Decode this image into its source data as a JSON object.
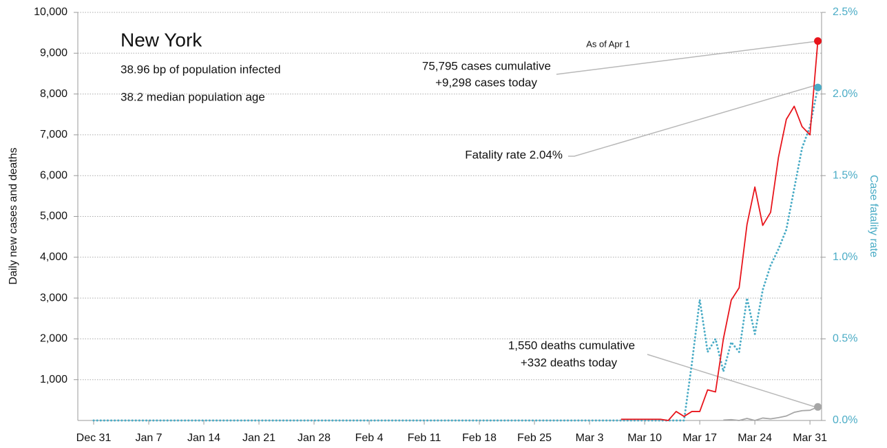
{
  "chart_data": {
    "type": "line",
    "title": "New York",
    "subtitle": [
      "38.96 bp of population infected",
      "38.2 median population age"
    ],
    "y_label": "Daily new cases and deaths",
    "y2_label": "Case fatality rate",
    "annotations": [
      "As of Apr 1",
      "75,795 cases cumulative",
      "+9,298 cases today",
      "Fatality rate 2.04%",
      "1,550 deaths cumulative",
      "+332 deaths today"
    ],
    "categories": [
      "Dec 31",
      null,
      null,
      null,
      null,
      null,
      null,
      "Jan 7",
      null,
      null,
      null,
      null,
      null,
      null,
      "Jan 14",
      null,
      null,
      null,
      null,
      null,
      null,
      "Jan 21",
      null,
      null,
      null,
      null,
      null,
      null,
      "Jan 28",
      null,
      null,
      null,
      null,
      null,
      null,
      "Feb 4",
      null,
      null,
      null,
      null,
      null,
      null,
      "Feb 11",
      null,
      null,
      null,
      null,
      null,
      null,
      "Feb 18",
      null,
      null,
      null,
      null,
      null,
      null,
      "Feb 25",
      null,
      null,
      null,
      null,
      null,
      null,
      "Mar 3",
      null,
      null,
      null,
      null,
      null,
      null,
      "Mar 10",
      null,
      null,
      null,
      null,
      null,
      null,
      "Mar 17",
      null,
      null,
      null,
      null,
      null,
      null,
      "Mar 24",
      null,
      null,
      null,
      null,
      null,
      null,
      "Mar 31",
      null
    ],
    "series": [
      {
        "color": "#4bacc6",
        "axis": "y2",
        "style": "dotted",
        "values": [
          0,
          0,
          0,
          0,
          0,
          0,
          0,
          0,
          0,
          0,
          0,
          0,
          0,
          0,
          0,
          0,
          0,
          0,
          0,
          0,
          0,
          0,
          0,
          0,
          0,
          0,
          0,
          0,
          0,
          0,
          0,
          0,
          0,
          0,
          0,
          0,
          0,
          0,
          0,
          0,
          0,
          0,
          0,
          0,
          0,
          0,
          0,
          0,
          0,
          0,
          0,
          0,
          0,
          0,
          0,
          0,
          0,
          0,
          0,
          0,
          0,
          0,
          0,
          0,
          0,
          0,
          0,
          0,
          0,
          0,
          0,
          0,
          0,
          0,
          0,
          0,
          0.35,
          0.74,
          0.42,
          0.5,
          0.3,
          0.48,
          0.42,
          0.75,
          0.53,
          0.8,
          0.95,
          1.05,
          1.17,
          1.42,
          1.67,
          1.8,
          2.04
        ]
      },
      {
        "color": "#a6a6a6",
        "values": [
          null,
          null,
          null,
          null,
          null,
          null,
          null,
          null,
          null,
          null,
          null,
          null,
          null,
          null,
          null,
          null,
          null,
          null,
          null,
          null,
          null,
          null,
          null,
          null,
          null,
          null,
          null,
          null,
          null,
          null,
          null,
          null,
          null,
          null,
          null,
          null,
          null,
          null,
          null,
          null,
          null,
          null,
          null,
          null,
          null,
          null,
          null,
          null,
          null,
          null,
          null,
          null,
          null,
          null,
          null,
          null,
          null,
          null,
          null,
          null,
          null,
          null,
          null,
          null,
          null,
          null,
          null,
          null,
          null,
          null,
          null,
          null,
          null,
          null,
          null,
          null,
          null,
          null,
          null,
          null,
          10,
          20,
          0,
          50,
          0,
          60,
          40,
          70,
          110,
          200,
          240,
          250,
          332
        ]
      },
      {
        "color": "#e8141b",
        "values": [
          null,
          null,
          null,
          null,
          null,
          null,
          null,
          null,
          null,
          null,
          null,
          null,
          null,
          null,
          null,
          null,
          null,
          null,
          null,
          null,
          null,
          null,
          null,
          null,
          null,
          null,
          null,
          null,
          null,
          null,
          null,
          null,
          null,
          null,
          null,
          null,
          null,
          null,
          null,
          null,
          null,
          null,
          null,
          null,
          null,
          null,
          null,
          null,
          null,
          null,
          null,
          null,
          null,
          null,
          null,
          null,
          null,
          null,
          null,
          null,
          null,
          null,
          null,
          null,
          null,
          null,
          null,
          30,
          30,
          30,
          30,
          30,
          30,
          0,
          220,
          100,
          220,
          220,
          750,
          700,
          2000,
          2950,
          3250,
          4800,
          5720,
          4780,
          5100,
          6450,
          7380,
          7700,
          7200,
          7000,
          9298
        ]
      }
    ],
    "ylim": [
      0,
      10000
    ],
    "yticks": [
      {
        "value": 1000,
        "label": "1,000"
      },
      {
        "value": 2000,
        "label": "2,000"
      },
      {
        "value": 3000,
        "label": "3,000"
      },
      {
        "value": 4000,
        "label": "4,000"
      },
      {
        "value": 5000,
        "label": "5,000"
      },
      {
        "value": 6000,
        "label": "6,000"
      },
      {
        "value": 7000,
        "label": "7,000"
      },
      {
        "value": 8000,
        "label": "8,000"
      },
      {
        "value": 9000,
        "label": "9,000"
      },
      {
        "value": 10000,
        "label": "10,000"
      }
    ],
    "y2lim": [
      0,
      2.5
    ],
    "y2ticks": [
      {
        "value": 0,
        "label": "0.0%"
      },
      {
        "value": 0.5,
        "label": "0.5%"
      },
      {
        "value": 1,
        "label": "1.0%"
      },
      {
        "value": 1.5,
        "label": "1.5%"
      },
      {
        "value": 2,
        "label": "2.0%"
      },
      {
        "value": 2.5,
        "label": "2.5%"
      }
    ],
    "grid": true
  }
}
